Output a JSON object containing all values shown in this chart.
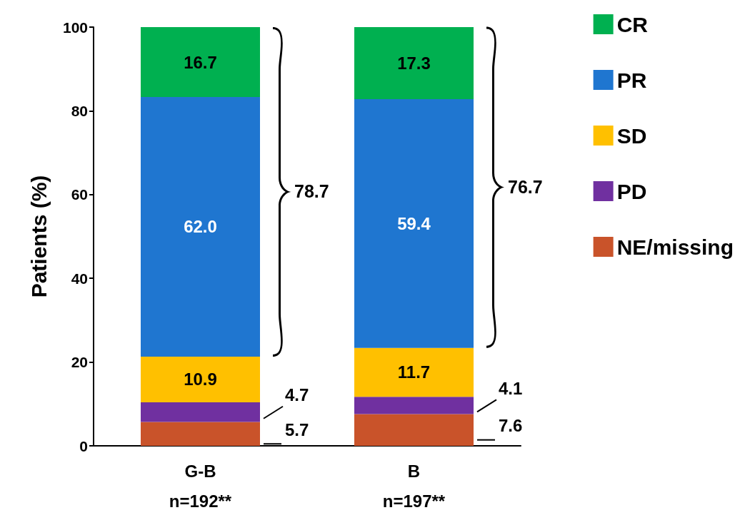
{
  "chart_data": {
    "type": "bar",
    "stacked": true,
    "ylabel": "Patients (%)",
    "categories": [
      "G-B\nn=192**",
      "B\nn=197**"
    ],
    "ylim": [
      0,
      100
    ],
    "yticks": [
      0,
      20,
      40,
      60,
      80,
      100
    ],
    "grid": false,
    "legend": "right",
    "series": [
      {
        "name": "NE/missing",
        "color": "#c9532a",
        "values": [
          5.7,
          7.6
        ],
        "value_labels": [
          "5.7",
          "7.6"
        ]
      },
      {
        "name": "PD",
        "color": "#7030a0",
        "values": [
          4.7,
          4.1
        ],
        "value_labels": [
          "4.7",
          "4.1"
        ]
      },
      {
        "name": "SD",
        "color": "#ffc000",
        "values": [
          10.9,
          11.7
        ],
        "value_labels": [
          "10.9",
          "11.7"
        ]
      },
      {
        "name": "PR",
        "color": "#1f76d0",
        "values": [
          62.0,
          59.4
        ],
        "value_labels": [
          "62.0",
          "59.4"
        ]
      },
      {
        "name": "CR",
        "color": "#00b050",
        "values": [
          16.7,
          17.3
        ],
        "value_labels": [
          "16.7",
          "17.3"
        ]
      }
    ],
    "annotations": [
      "78.7",
      "76.7"
    ]
  }
}
